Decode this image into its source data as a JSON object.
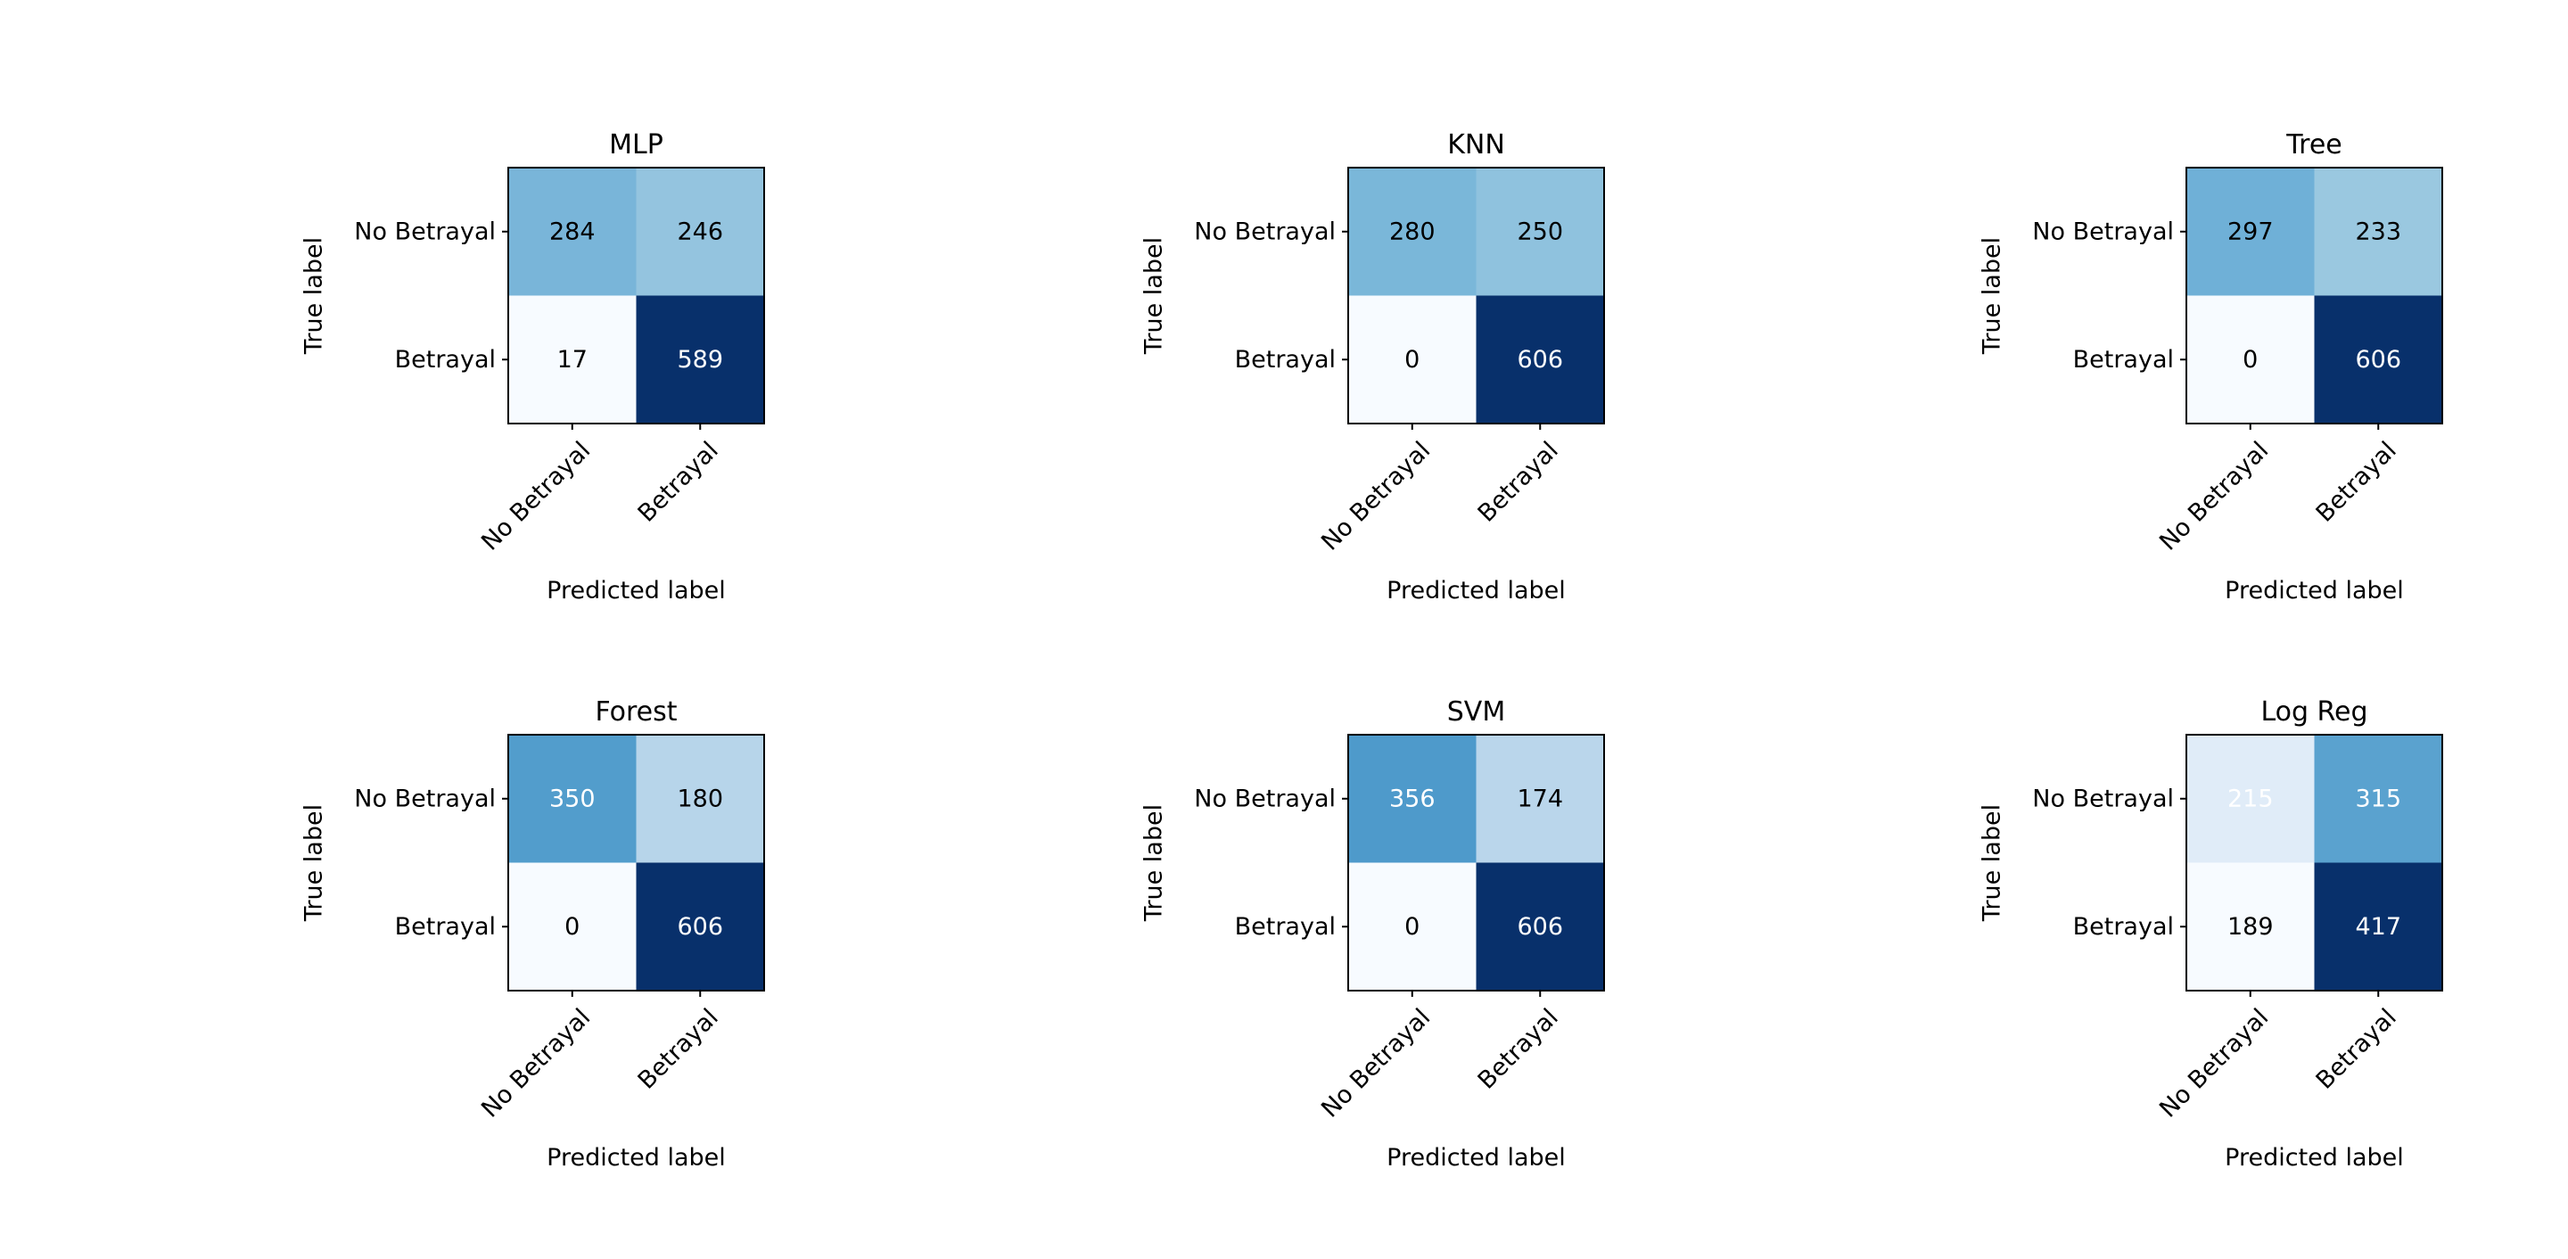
{
  "chart_data": [
    {
      "type": "heatmap",
      "title": "MLP",
      "xlabel": "Predicted label",
      "ylabel": "True label",
      "x_categories": [
        "No Betrayal",
        "Betrayal"
      ],
      "y_categories": [
        "No Betrayal",
        "Betrayal"
      ],
      "values": [
        [
          284,
          246
        ],
        [
          17,
          589
        ]
      ],
      "cell_text_colors": [
        [
          "#000000",
          "#000000"
        ],
        [
          "#000000",
          "#ffffff"
        ]
      ],
      "colormap": "Blues"
    },
    {
      "type": "heatmap",
      "title": "KNN",
      "xlabel": "Predicted label",
      "ylabel": "True label",
      "x_categories": [
        "No Betrayal",
        "Betrayal"
      ],
      "y_categories": [
        "No Betrayal",
        "Betrayal"
      ],
      "values": [
        [
          280,
          250
        ],
        [
          0,
          606
        ]
      ],
      "cell_text_colors": [
        [
          "#000000",
          "#000000"
        ],
        [
          "#000000",
          "#ffffff"
        ]
      ],
      "colormap": "Blues"
    },
    {
      "type": "heatmap",
      "title": "Tree",
      "xlabel": "Predicted label",
      "ylabel": "True label",
      "x_categories": [
        "No Betrayal",
        "Betrayal"
      ],
      "y_categories": [
        "No Betrayal",
        "Betrayal"
      ],
      "values": [
        [
          297,
          233
        ],
        [
          0,
          606
        ]
      ],
      "cell_text_colors": [
        [
          "#000000",
          "#000000"
        ],
        [
          "#000000",
          "#ffffff"
        ]
      ],
      "colormap": "Blues"
    },
    {
      "type": "heatmap",
      "title": "Forest",
      "xlabel": "Predicted label",
      "ylabel": "True label",
      "x_categories": [
        "No Betrayal",
        "Betrayal"
      ],
      "y_categories": [
        "No Betrayal",
        "Betrayal"
      ],
      "values": [
        [
          350,
          180
        ],
        [
          0,
          606
        ]
      ],
      "cell_text_colors": [
        [
          "#ffffff",
          "#000000"
        ],
        [
          "#000000",
          "#ffffff"
        ]
      ],
      "colormap": "Blues"
    },
    {
      "type": "heatmap",
      "title": "SVM",
      "xlabel": "Predicted label",
      "ylabel": "True label",
      "x_categories": [
        "No Betrayal",
        "Betrayal"
      ],
      "y_categories": [
        "No Betrayal",
        "Betrayal"
      ],
      "values": [
        [
          356,
          174
        ],
        [
          0,
          606
        ]
      ],
      "cell_text_colors": [
        [
          "#ffffff",
          "#000000"
        ],
        [
          "#000000",
          "#ffffff"
        ]
      ],
      "colormap": "Blues"
    },
    {
      "type": "heatmap",
      "title": "Log Reg",
      "xlabel": "Predicted label",
      "ylabel": "True label",
      "x_categories": [
        "No Betrayal",
        "Betrayal"
      ],
      "y_categories": [
        "No Betrayal",
        "Betrayal"
      ],
      "values": [
        [
          215,
          315
        ],
        [
          189,
          417
        ]
      ],
      "cell_text_colors": [
        [
          "#ffffff",
          "#ffffff"
        ],
        [
          "#000000",
          "#ffffff"
        ]
      ],
      "colormap": "Blues"
    }
  ]
}
